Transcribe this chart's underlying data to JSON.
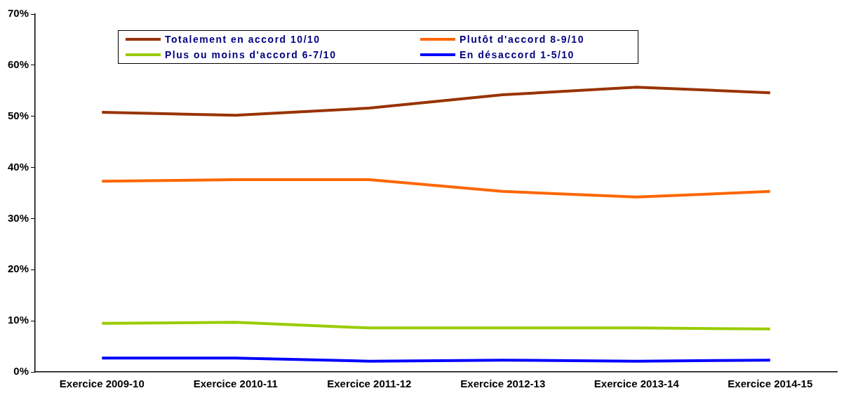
{
  "chart_data": {
    "type": "line",
    "categories": [
      "Exercice 2009-10",
      "Exercice 2010-11",
      "Exercice 2011-12",
      "Exercice 2012-13",
      "Exercice 2013-14",
      "Exercice 2014-15"
    ],
    "series": [
      {
        "name": "Totalement en accord 10/10",
        "color": "#993300",
        "values": [
          50.8,
          50.2,
          51.6,
          54.2,
          55.7,
          54.6
        ]
      },
      {
        "name": "Plutôt d'accord 8-9/10",
        "color": "#ff6600",
        "values": [
          37.3,
          37.6,
          37.6,
          35.3,
          34.2,
          35.3
        ]
      },
      {
        "name": "Plus ou moins d'accord 6-7/10",
        "color": "#99cc00",
        "values": [
          9.5,
          9.7,
          8.6,
          8.6,
          8.6,
          8.4
        ]
      },
      {
        "name": "En désaccord 1-5/10",
        "color": "#0000ff",
        "values": [
          2.7,
          2.7,
          2.1,
          2.3,
          2.1,
          2.3
        ]
      }
    ],
    "ylim": [
      0,
      70
    ],
    "yticks": [
      {
        "value": 0,
        "label": "0%"
      },
      {
        "value": 10,
        "label": "10%"
      },
      {
        "value": 20,
        "label": "20%"
      },
      {
        "value": 30,
        "label": "30%"
      },
      {
        "value": 40,
        "label": "40%"
      },
      {
        "value": 50,
        "label": "50%"
      },
      {
        "value": 60,
        "label": "60%"
      },
      {
        "value": 70,
        "label": "70%"
      }
    ],
    "grid": false,
    "legend": "top left",
    "marker": "none",
    "line_style": "solid"
  }
}
